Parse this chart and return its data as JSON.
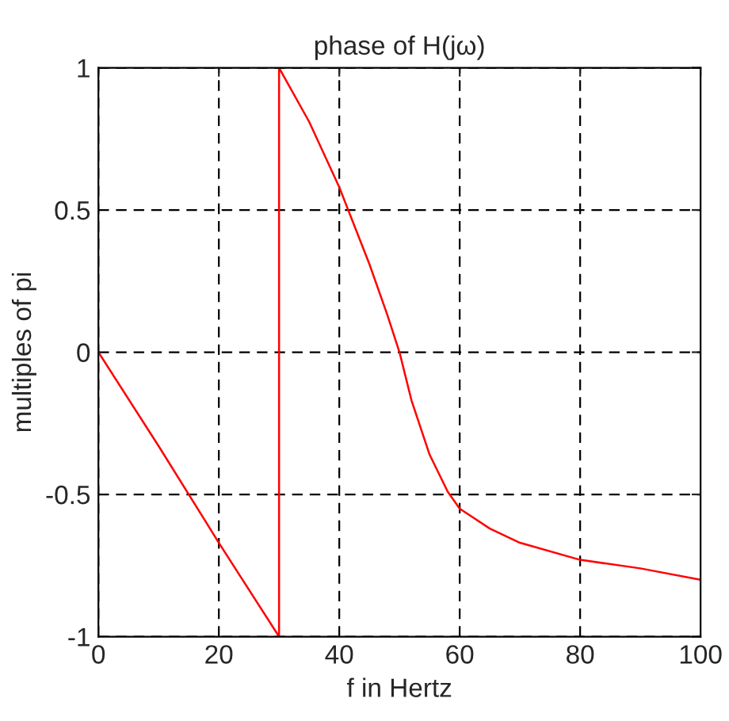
{
  "chart_data": {
    "type": "line",
    "title": "phase of H(jω)",
    "xlabel": "f in Hertz",
    "ylabel": "multiples of pi",
    "series": [
      {
        "color": "#ff0000",
        "x": [
          0,
          10,
          20,
          30,
          30,
          35,
          40,
          45,
          48,
          50,
          52,
          55,
          58,
          60,
          65,
          70,
          80,
          90,
          100
        ],
        "values": [
          0,
          -0.33,
          -0.67,
          -1,
          1,
          0.81,
          0.58,
          0.31,
          0.13,
          0,
          -0.17,
          -0.36,
          -0.49,
          -0.55,
          -0.62,
          -0.67,
          -0.73,
          -0.76,
          -0.8
        ]
      }
    ],
    "xlim": [
      0,
      100
    ],
    "xticks": [
      0,
      20,
      40,
      60,
      80,
      100
    ],
    "ylim": [
      -1,
      1
    ],
    "yticks": [
      -1,
      -0.5,
      0,
      0.5,
      1
    ],
    "grid": true,
    "line_style": "solid",
    "marker": "none"
  }
}
